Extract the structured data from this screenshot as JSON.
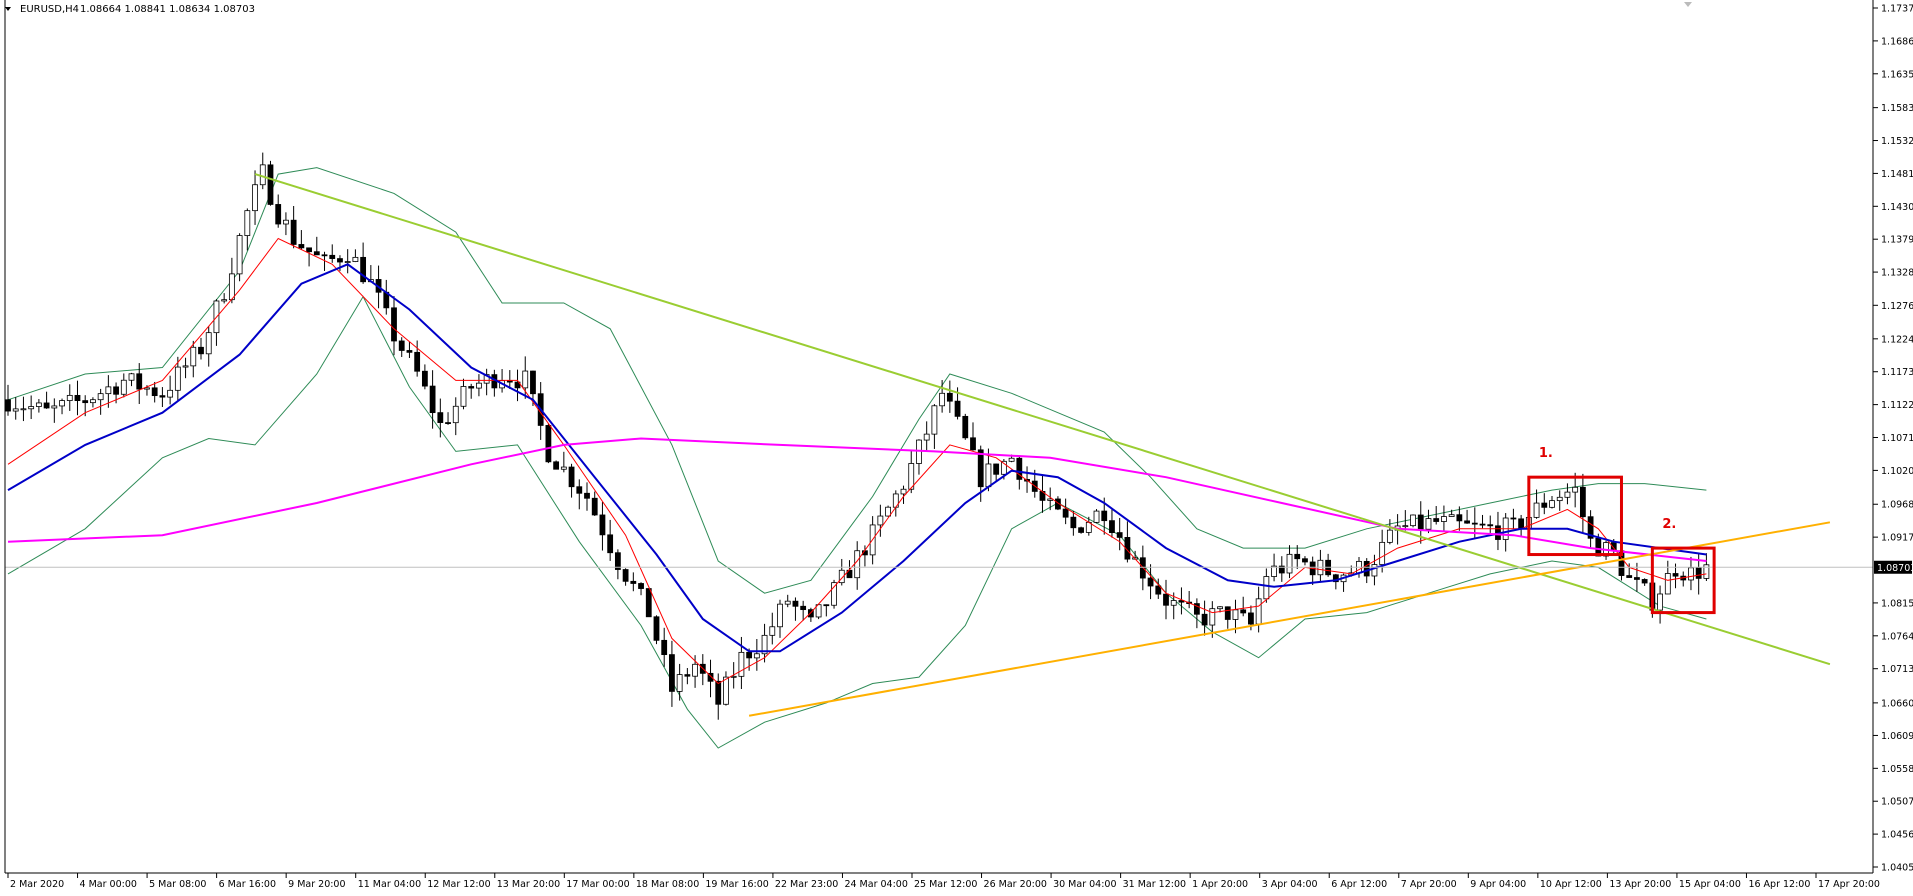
{
  "header": {
    "symbol_label": "EURUSD,H4",
    "ohlc_label": "1.08664 1.08841 1.08634 1.08703"
  },
  "colors": {
    "bull_candle": "#ffffff",
    "bear_candle": "#000000",
    "candle_outline": "#000000",
    "ma_fast": "#ff0000",
    "ma_mid": "#0000c8",
    "ma_slow": "#ff00ff",
    "bollinger": "#2e8b57",
    "downtrend_line": "#9acd32",
    "uptrend_line": "#ffb000",
    "annotation": "#e00000",
    "current_price_tag": "#000000"
  },
  "chart_data": {
    "type": "candlestick",
    "symbol": "EURUSD",
    "timeframe": "H4",
    "current_price": 1.08703,
    "y_ticks": [
      "1.17375",
      "1.16865",
      "1.16355",
      "1.15830",
      "1.15320",
      "1.14810",
      "1.14300",
      "1.13790",
      "1.13280",
      "1.12765",
      "1.12245",
      "1.11735",
      "1.11225",
      "1.10715",
      "1.10205",
      "1.09680",
      "1.09170",
      "1.08150",
      "1.07640",
      "1.07130",
      "1.06600",
      "1.06095",
      "1.05585",
      "1.05075",
      "1.04565",
      "1.04055"
    ],
    "x_ticks": [
      "2 Mar 2020",
      "4 Mar 00:00",
      "5 Mar 08:00",
      "6 Mar 16:00",
      "9 Mar 20:00",
      "11 Mar 04:00",
      "12 Mar 12:00",
      "13 Mar 20:00",
      "17 Mar 00:00",
      "18 Mar 08:00",
      "19 Mar 16:00",
      "22 Mar 23:00",
      "24 Mar 04:00",
      "25 Mar 12:00",
      "26 Mar 20:00",
      "30 Mar 04:00",
      "31 Mar 12:00",
      "1 Apr 20:00",
      "3 Apr 04:00",
      "6 Apr 12:00",
      "7 Apr 20:00",
      "9 Apr 04:00",
      "10 Apr 12:00",
      "13 Apr 20:00",
      "15 Apr 04:00",
      "16 Apr 12:00",
      "17 Apr 20:00"
    ],
    "ylim": [
      1.04055,
      1.1757
    ],
    "price_path": [
      [
        0,
        1.113
      ],
      [
        5,
        1.111
      ],
      [
        10,
        1.113
      ],
      [
        15,
        1.116
      ],
      [
        20,
        1.114
      ],
      [
        25,
        1.121
      ],
      [
        28,
        1.13
      ],
      [
        31,
        1.142
      ],
      [
        33,
        1.148
      ],
      [
        35,
        1.142
      ],
      [
        37,
        1.138
      ],
      [
        39,
        1.136
      ],
      [
        41,
        1.134
      ],
      [
        44,
        1.136
      ],
      [
        47,
        1.131
      ],
      [
        50,
        1.123
      ],
      [
        53,
        1.117
      ],
      [
        56,
        1.109
      ],
      [
        60,
        1.115
      ],
      [
        64,
        1.117
      ],
      [
        67,
        1.116
      ],
      [
        70,
        1.105
      ],
      [
        75,
        1.098
      ],
      [
        79,
        1.088
      ],
      [
        83,
        1.08
      ],
      [
        86,
        1.068
      ],
      [
        89,
        1.072
      ],
      [
        92,
        1.066
      ],
      [
        95,
        1.073
      ],
      [
        98,
        1.076
      ],
      [
        101,
        1.082
      ],
      [
        104,
        1.078
      ],
      [
        108,
        1.085
      ],
      [
        112,
        1.092
      ],
      [
        116,
        1.1
      ],
      [
        119,
        1.108
      ],
      [
        121,
        1.114
      ],
      [
        123,
        1.109
      ],
      [
        126,
        1.101
      ],
      [
        130,
        1.104
      ],
      [
        134,
        1.097
      ],
      [
        138,
        1.093
      ],
      [
        142,
        1.096
      ],
      [
        146,
        1.088
      ],
      [
        150,
        1.082
      ],
      [
        154,
        1.079
      ],
      [
        158,
        1.08
      ],
      [
        161,
        1.078
      ],
      [
        163,
        1.086
      ],
      [
        167,
        1.088
      ],
      [
        172,
        1.086
      ],
      [
        176,
        1.087
      ],
      [
        180,
        1.093
      ],
      [
        185,
        1.094
      ],
      [
        190,
        1.093
      ],
      [
        195,
        1.093
      ],
      [
        200,
        1.098
      ],
      [
        203,
        1.099
      ],
      [
        205,
        1.091
      ],
      [
        208,
        1.089
      ],
      [
        210,
        1.085
      ],
      [
        213,
        1.082
      ],
      [
        216,
        1.087
      ],
      [
        218,
        1.086
      ],
      [
        220,
        1.087
      ]
    ],
    "series": [
      {
        "name": "",
        "kind": "moving-average-fast",
        "points": [
          [
            0,
            1.103
          ],
          [
            10,
            1.111
          ],
          [
            20,
            1.116
          ],
          [
            30,
            1.13
          ],
          [
            35,
            1.138
          ],
          [
            42,
            1.134
          ],
          [
            50,
            1.124
          ],
          [
            58,
            1.116
          ],
          [
            66,
            1.116
          ],
          [
            72,
            1.106
          ],
          [
            80,
            1.092
          ],
          [
            86,
            1.076
          ],
          [
            92,
            1.069
          ],
          [
            98,
            1.073
          ],
          [
            104,
            1.08
          ],
          [
            110,
            1.088
          ],
          [
            116,
            1.098
          ],
          [
            122,
            1.106
          ],
          [
            128,
            1.104
          ],
          [
            136,
            1.097
          ],
          [
            144,
            1.091
          ],
          [
            150,
            1.083
          ],
          [
            156,
            1.08
          ],
          [
            162,
            1.081
          ],
          [
            168,
            1.087
          ],
          [
            174,
            1.086
          ],
          [
            180,
            1.09
          ],
          [
            188,
            1.093
          ],
          [
            196,
            1.093
          ],
          [
            202,
            1.096
          ],
          [
            206,
            1.093
          ],
          [
            210,
            1.087
          ],
          [
            215,
            1.085
          ],
          [
            220,
            1.086
          ]
        ]
      },
      {
        "name": "",
        "kind": "moving-average-mid",
        "points": [
          [
            0,
            1.099
          ],
          [
            10,
            1.106
          ],
          [
            20,
            1.111
          ],
          [
            30,
            1.12
          ],
          [
            38,
            1.131
          ],
          [
            44,
            1.134
          ],
          [
            52,
            1.127
          ],
          [
            60,
            1.118
          ],
          [
            68,
            1.113
          ],
          [
            76,
            1.101
          ],
          [
            84,
            1.089
          ],
          [
            90,
            1.079
          ],
          [
            96,
            1.074
          ],
          [
            100,
            1.074
          ],
          [
            108,
            1.08
          ],
          [
            116,
            1.088
          ],
          [
            124,
            1.097
          ],
          [
            130,
            1.102
          ],
          [
            136,
            1.101
          ],
          [
            142,
            1.097
          ],
          [
            150,
            1.09
          ],
          [
            158,
            1.085
          ],
          [
            164,
            1.084
          ],
          [
            172,
            1.085
          ],
          [
            180,
            1.088
          ],
          [
            188,
            1.091
          ],
          [
            196,
            1.093
          ],
          [
            202,
            1.093
          ],
          [
            208,
            1.091
          ],
          [
            214,
            1.09
          ],
          [
            220,
            1.089
          ]
        ]
      },
      {
        "name": "",
        "kind": "moving-average-slow",
        "points": [
          [
            0,
            1.091
          ],
          [
            20,
            1.092
          ],
          [
            40,
            1.097
          ],
          [
            60,
            1.103
          ],
          [
            72,
            1.106
          ],
          [
            82,
            1.107
          ],
          [
            100,
            1.106
          ],
          [
            120,
            1.105
          ],
          [
            135,
            1.104
          ],
          [
            150,
            1.101
          ],
          [
            165,
            1.097
          ],
          [
            180,
            1.093
          ],
          [
            195,
            1.092
          ],
          [
            205,
            1.09
          ],
          [
            220,
            1.088
          ]
        ]
      },
      {
        "name": "",
        "kind": "bollinger-upper",
        "points": [
          [
            0,
            1.113
          ],
          [
            10,
            1.117
          ],
          [
            20,
            1.118
          ],
          [
            30,
            1.133
          ],
          [
            35,
            1.148
          ],
          [
            40,
            1.149
          ],
          [
            50,
            1.145
          ],
          [
            58,
            1.139
          ],
          [
            64,
            1.128
          ],
          [
            72,
            1.128
          ],
          [
            78,
            1.124
          ],
          [
            86,
            1.106
          ],
          [
            92,
            1.088
          ],
          [
            98,
            1.083
          ],
          [
            104,
            1.085
          ],
          [
            112,
            1.098
          ],
          [
            118,
            1.11
          ],
          [
            122,
            1.117
          ],
          [
            130,
            1.114
          ],
          [
            136,
            1.111
          ],
          [
            142,
            1.108
          ],
          [
            148,
            1.101
          ],
          [
            154,
            1.093
          ],
          [
            160,
            1.09
          ],
          [
            168,
            1.09
          ],
          [
            176,
            1.093
          ],
          [
            184,
            1.095
          ],
          [
            192,
            1.097
          ],
          [
            200,
            1.099
          ],
          [
            206,
            1.1
          ],
          [
            212,
            1.1
          ],
          [
            220,
            1.099
          ]
        ]
      },
      {
        "name": "",
        "kind": "bollinger-lower",
        "points": [
          [
            0,
            1.086
          ],
          [
            10,
            1.093
          ],
          [
            20,
            1.104
          ],
          [
            26,
            1.107
          ],
          [
            32,
            1.106
          ],
          [
            40,
            1.117
          ],
          [
            46,
            1.129
          ],
          [
            52,
            1.115
          ],
          [
            58,
            1.105
          ],
          [
            66,
            1.106
          ],
          [
            74,
            1.091
          ],
          [
            82,
            1.078
          ],
          [
            88,
            1.065
          ],
          [
            92,
            1.059
          ],
          [
            98,
            1.063
          ],
          [
            106,
            1.066
          ],
          [
            112,
            1.069
          ],
          [
            118,
            1.07
          ],
          [
            124,
            1.078
          ],
          [
            130,
            1.093
          ],
          [
            136,
            1.097
          ],
          [
            144,
            1.092
          ],
          [
            150,
            1.083
          ],
          [
            156,
            1.077
          ],
          [
            162,
            1.073
          ],
          [
            168,
            1.079
          ],
          [
            176,
            1.08
          ],
          [
            184,
            1.083
          ],
          [
            192,
            1.086
          ],
          [
            200,
            1.088
          ],
          [
            206,
            1.087
          ],
          [
            214,
            1.081
          ],
          [
            220,
            1.079
          ]
        ]
      }
    ],
    "trendlines": [
      {
        "name": "",
        "kind": "downtrend",
        "points": [
          [
            32,
            1.148
          ],
          [
            236,
            1.072
          ]
        ]
      },
      {
        "name": "",
        "kind": "uptrend",
        "points": [
          [
            96,
            1.064
          ],
          [
            236,
            1.094
          ]
        ]
      }
    ],
    "annotations": [
      {
        "label": "1.",
        "box": {
          "x_from": 197,
          "x_to": 209,
          "y_from": 1.089,
          "y_to": 1.101
        }
      },
      {
        "label": "2.",
        "box": {
          "x_from": 213,
          "x_to": 221,
          "y_from": 1.08,
          "y_to": 1.09
        }
      }
    ],
    "grid": false,
    "legend": "none"
  }
}
